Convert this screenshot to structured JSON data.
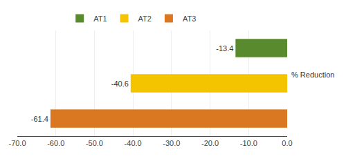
{
  "chart_data": {
    "type": "bar",
    "orientation": "horizontal",
    "categories": [
      "AT1",
      "AT2",
      "AT3"
    ],
    "values": [
      -13.4,
      -40.6,
      -61.4
    ],
    "colors": [
      "#5a8a2e",
      "#f5c400",
      "#d97820"
    ],
    "data_labels": true,
    "xlim": [
      -70.0,
      0.0
    ],
    "xticks": [
      {
        "value": -70.0,
        "label": "-70.0"
      },
      {
        "value": -60.0,
        "label": "-60.0"
      },
      {
        "value": -50.0,
        "label": "-50.0"
      },
      {
        "value": -40.0,
        "label": "-40.0"
      },
      {
        "value": -30.0,
        "label": "-30.0"
      },
      {
        "value": -20.0,
        "label": "-20.0"
      },
      {
        "value": -10.0,
        "label": "-10.0"
      },
      {
        "value": 0.0,
        "label": "0.0"
      }
    ],
    "grid": true,
    "legend": "top",
    "tick_labels": "x",
    "annotations": [
      "% Reduction"
    ]
  }
}
